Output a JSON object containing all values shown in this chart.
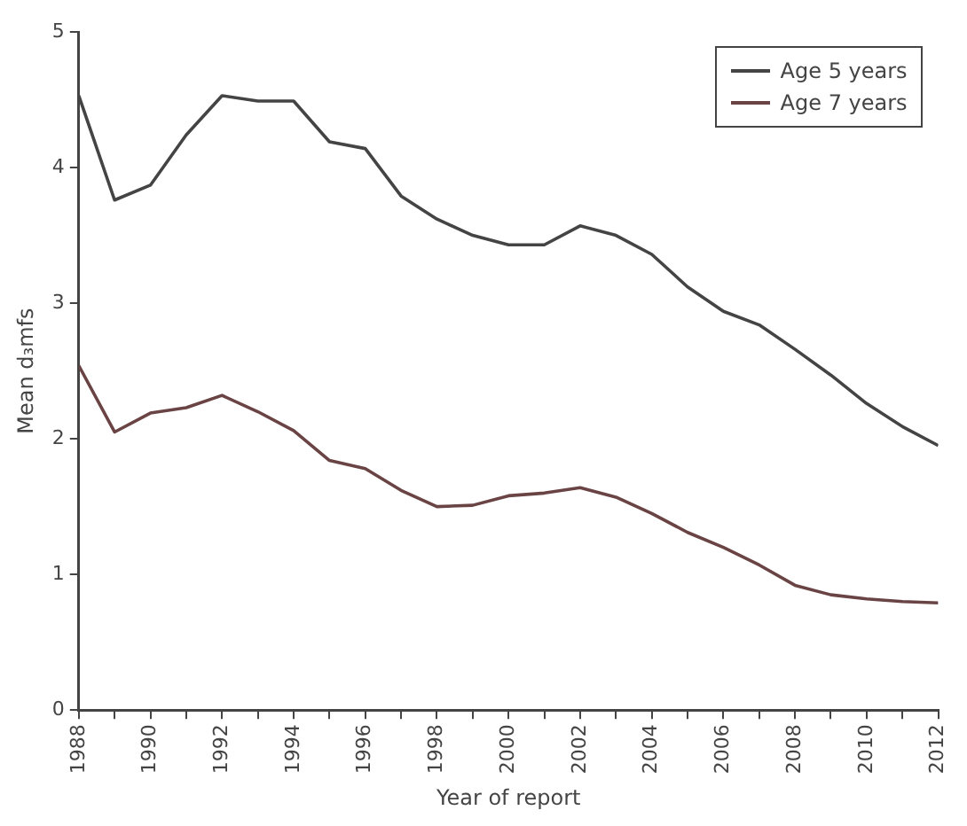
{
  "chart_data": {
    "type": "line",
    "xlabel": "Year of report",
    "ylabel": "Mean d₃mfs",
    "x": [
      1988,
      1989,
      1990,
      1991,
      1992,
      1993,
      1994,
      1995,
      1996,
      1997,
      1998,
      1999,
      2000,
      2001,
      2002,
      2003,
      2004,
      2005,
      2006,
      2007,
      2008,
      2009,
      2010,
      2011,
      2012
    ],
    "series": [
      {
        "name": "Age 5 years",
        "color": "#444444",
        "values": [
          4.53,
          3.76,
          3.87,
          4.24,
          4.53,
          4.49,
          4.49,
          4.19,
          4.14,
          3.79,
          3.62,
          3.5,
          3.43,
          3.43,
          3.57,
          3.5,
          3.36,
          3.12,
          2.94,
          2.84,
          2.66,
          2.47,
          2.26,
          2.09,
          1.95
        ]
      },
      {
        "name": "Age 7 years",
        "color": "#6a4444",
        "values": [
          2.54,
          2.05,
          2.19,
          2.23,
          2.32,
          2.2,
          2.06,
          1.84,
          1.78,
          1.62,
          1.5,
          1.51,
          1.58,
          1.6,
          1.64,
          1.57,
          1.45,
          1.31,
          1.2,
          1.07,
          0.92,
          0.85,
          0.82,
          0.8,
          0.79
        ]
      }
    ],
    "xlim": [
      1988,
      2012
    ],
    "xticks": [
      1988,
      {
        "value": 1989,
        "label": null
      },
      1990,
      {
        "value": 1991,
        "label": null
      },
      1992,
      {
        "value": 1993,
        "label": null
      },
      1994,
      {
        "value": 1995,
        "label": null
      },
      1996,
      {
        "value": 1997,
        "label": null
      },
      1998,
      {
        "value": 1999,
        "label": null
      },
      2000,
      {
        "value": 2001,
        "label": null
      },
      2002,
      {
        "value": 2003,
        "label": null
      },
      2004,
      {
        "value": 2005,
        "label": null
      },
      2006,
      {
        "value": 2007,
        "label": null
      },
      2008,
      {
        "value": 2009,
        "label": null
      },
      2010,
      {
        "value": 2011,
        "label": null
      },
      2012
    ],
    "ylim": [
      0,
      5
    ],
    "yticks": [
      0,
      1,
      2,
      3,
      4,
      5
    ],
    "grid": false,
    "legend": "top right",
    "marker": "none",
    "line_style": "solid"
  }
}
